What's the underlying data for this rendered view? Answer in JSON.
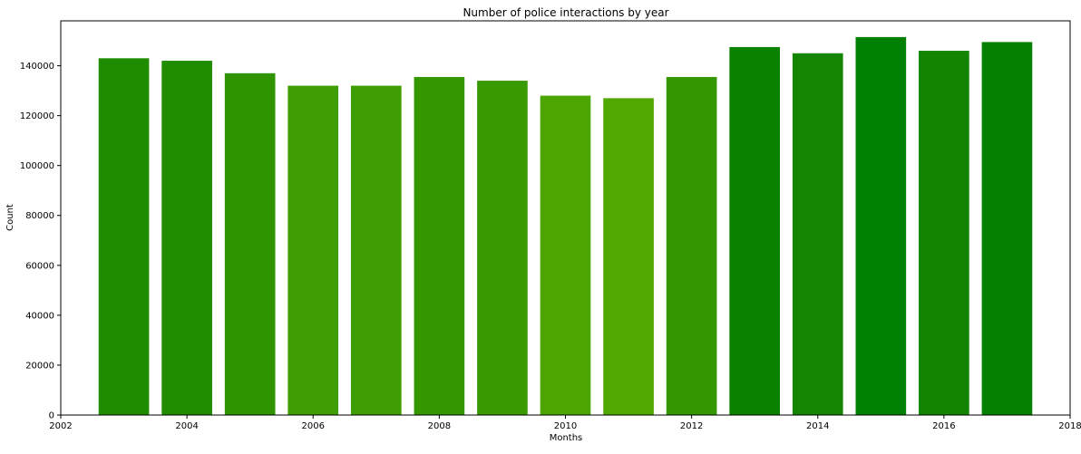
{
  "chart_data": {
    "type": "bar",
    "title": "Number of police interactions by year",
    "xlabel": "Months",
    "ylabel": "Count",
    "x": [
      2003,
      2004,
      2005,
      2006,
      2007,
      2008,
      2009,
      2010,
      2011,
      2012,
      2013,
      2014,
      2015,
      2016,
      2017
    ],
    "values": [
      143000,
      142000,
      137000,
      132000,
      132000,
      135500,
      134000,
      128000,
      127000,
      135500,
      147500,
      145000,
      151500,
      146000,
      149500
    ],
    "bar_colors": [
      "#1f8c00",
      "#208c00",
      "#2e9400",
      "#3e9d00",
      "#3e9d00",
      "#349700",
      "#389900",
      "#4ca500",
      "#51a800",
      "#349700",
      "#0b8100",
      "#138500",
      "#008000",
      "#118400",
      "#068000"
    ],
    "xlim": [
      2002,
      2018
    ],
    "ylim": [
      0,
      158000
    ],
    "xticks": [
      2002,
      2004,
      2006,
      2008,
      2010,
      2012,
      2014,
      2016,
      2018
    ],
    "yticks": [
      0,
      20000,
      40000,
      60000,
      80000,
      100000,
      120000,
      140000
    ],
    "grid": false
  }
}
